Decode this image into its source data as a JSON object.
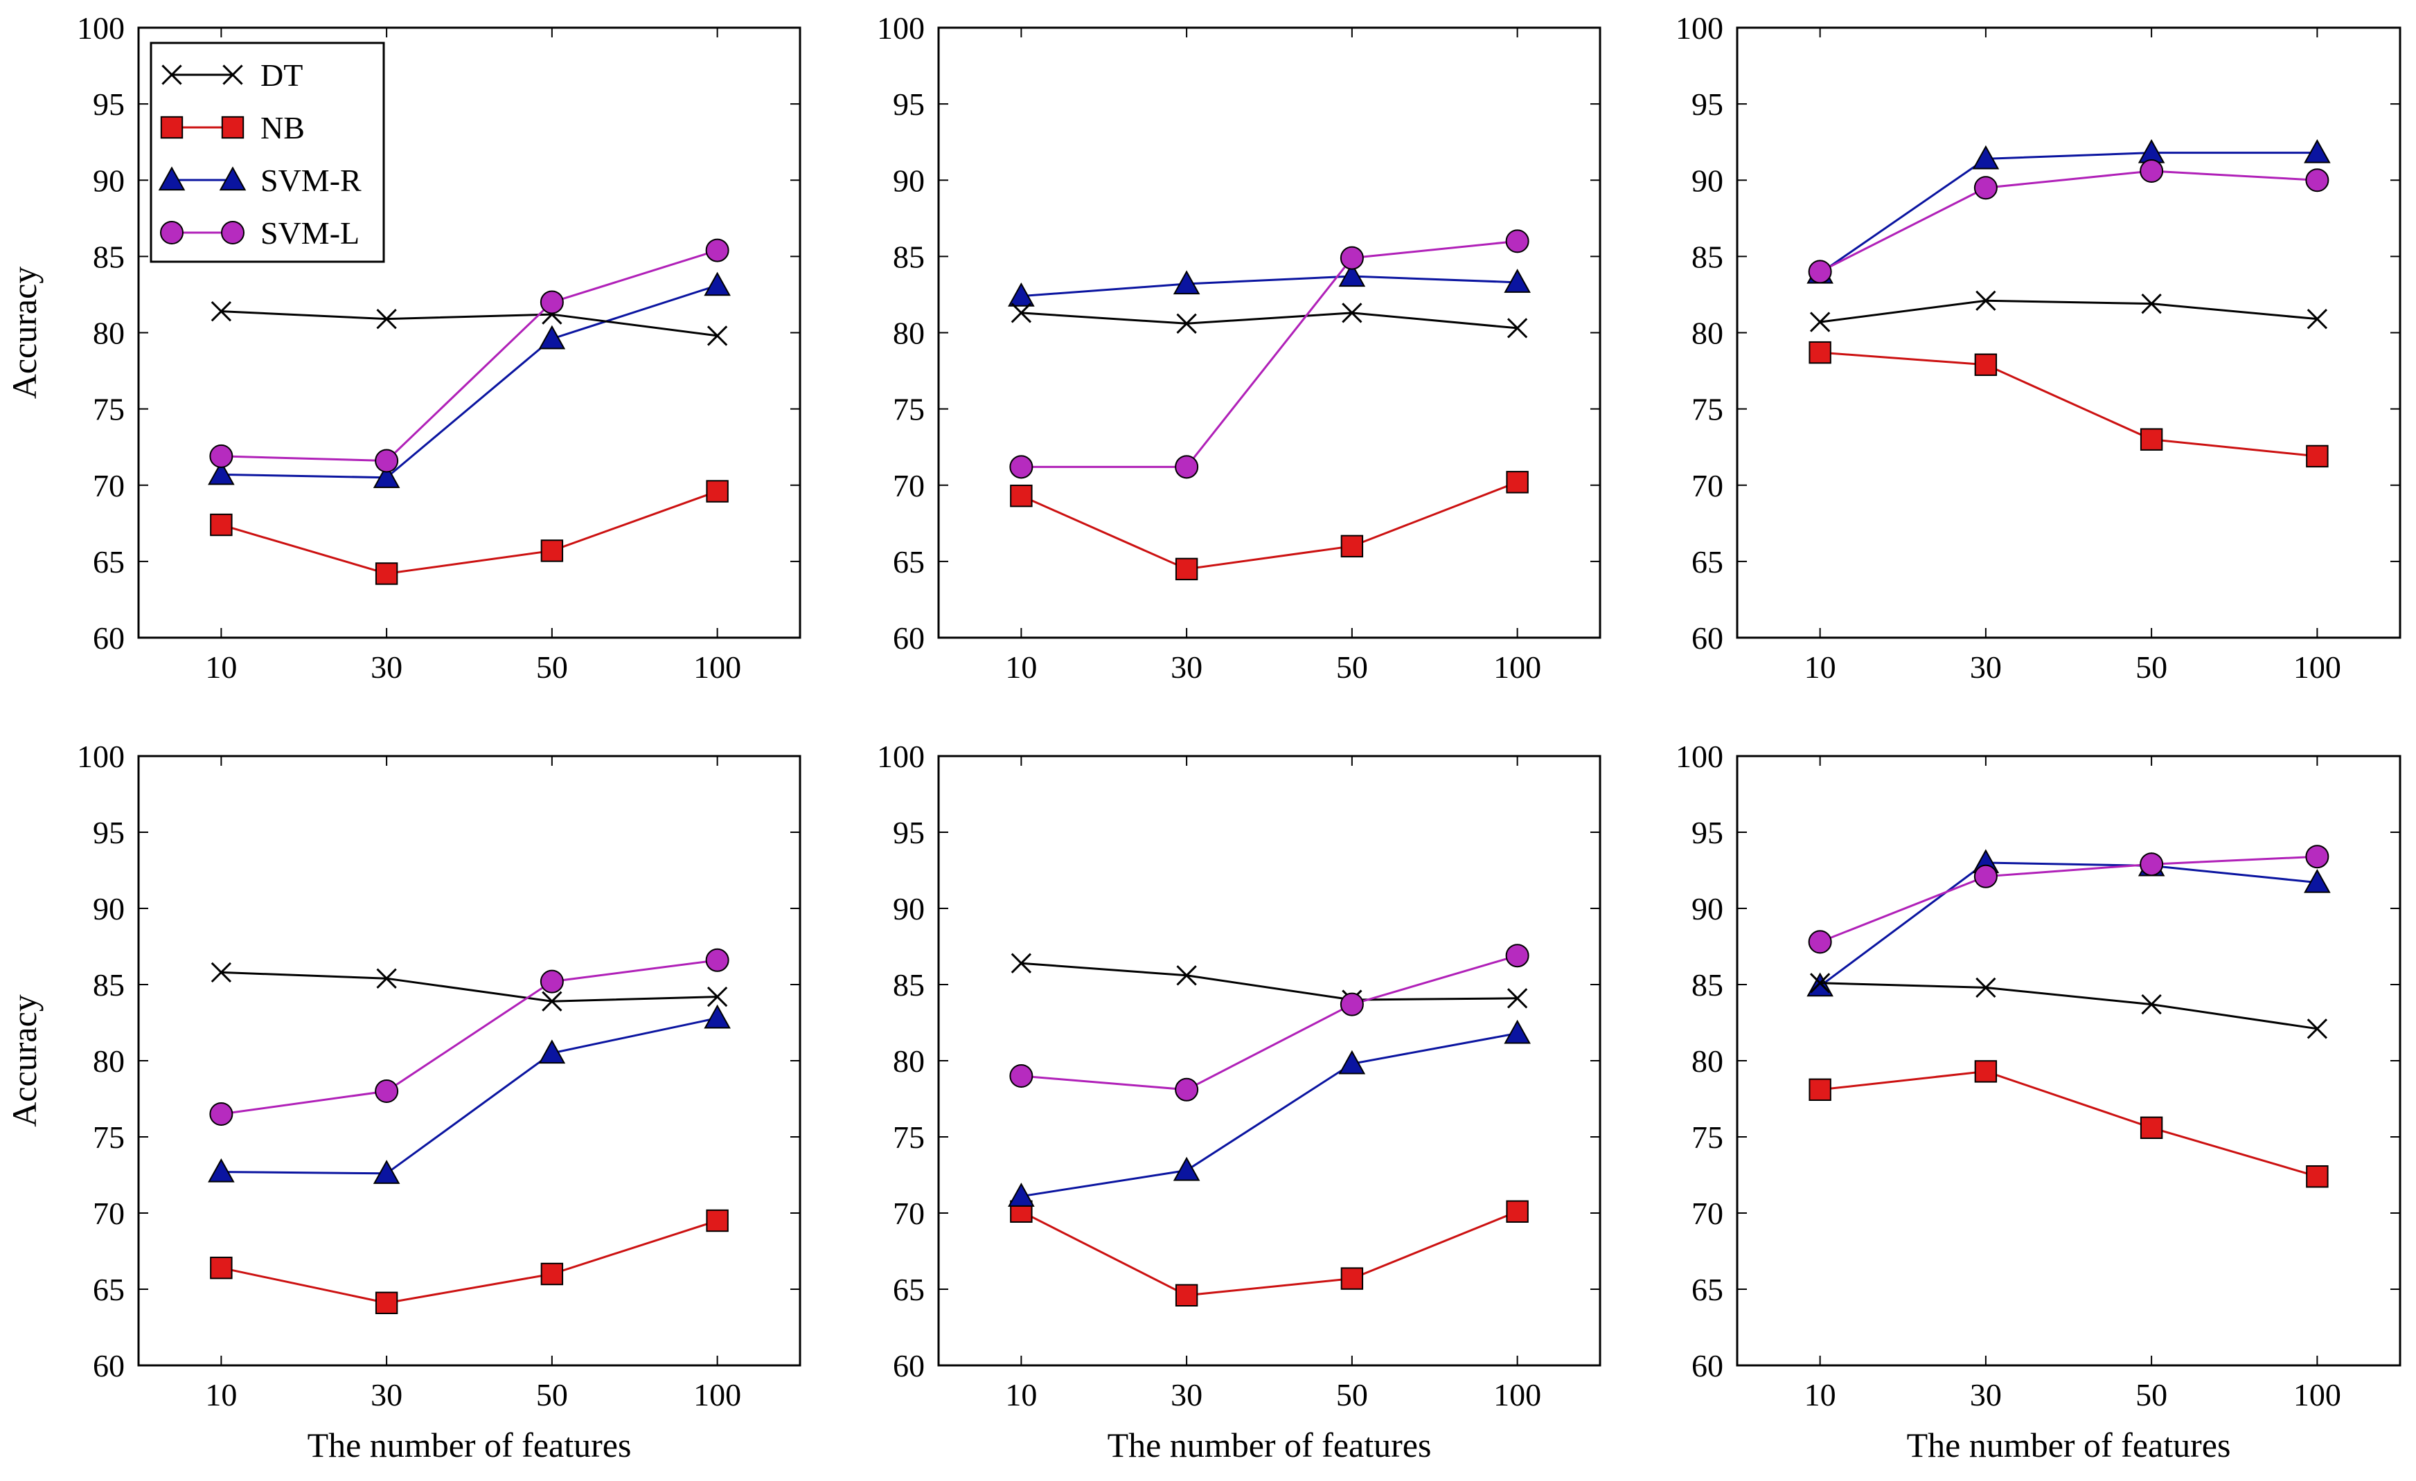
{
  "chart_data": [
    {
      "type": "line",
      "ylabel": "Accuracy",
      "xlabel": "",
      "categories": [
        "10",
        "30",
        "50",
        "100"
      ],
      "ylim": [
        60,
        100
      ],
      "yticks": [
        "60",
        "65",
        "70",
        "75",
        "80",
        "85",
        "90",
        "95",
        "100"
      ],
      "series": [
        {
          "name": "DT",
          "values": [
            81.4,
            80.9,
            81.2,
            79.8
          ]
        },
        {
          "name": "NB",
          "values": [
            67.4,
            64.2,
            65.7,
            69.6
          ]
        },
        {
          "name": "SVM-R",
          "values": [
            70.7,
            70.5,
            79.6,
            83.1
          ]
        },
        {
          "name": "SVM-L",
          "values": [
            71.9,
            71.6,
            82.0,
            85.4
          ]
        }
      ]
    },
    {
      "type": "line",
      "ylabel": "",
      "xlabel": "",
      "categories": [
        "10",
        "30",
        "50",
        "100"
      ],
      "ylim": [
        60,
        100
      ],
      "yticks": [
        "60",
        "65",
        "70",
        "75",
        "80",
        "85",
        "90",
        "95",
        "100"
      ],
      "series": [
        {
          "name": "DT",
          "values": [
            81.3,
            80.6,
            81.3,
            80.3
          ]
        },
        {
          "name": "NB",
          "values": [
            69.3,
            64.5,
            66.0,
            70.2
          ]
        },
        {
          "name": "SVM-R",
          "values": [
            82.4,
            83.2,
            83.7,
            83.3
          ]
        },
        {
          "name": "SVM-L",
          "values": [
            71.2,
            71.2,
            84.9,
            86.0
          ]
        }
      ]
    },
    {
      "type": "line",
      "ylabel": "",
      "xlabel": "",
      "categories": [
        "10",
        "30",
        "50",
        "100"
      ],
      "ylim": [
        60,
        100
      ],
      "yticks": [
        "60",
        "65",
        "70",
        "75",
        "80",
        "85",
        "90",
        "95",
        "100"
      ],
      "series": [
        {
          "name": "DT",
          "values": [
            80.7,
            82.1,
            81.9,
            80.9
          ]
        },
        {
          "name": "NB",
          "values": [
            78.7,
            77.9,
            73.0,
            71.9
          ]
        },
        {
          "name": "SVM-R",
          "values": [
            83.9,
            91.4,
            91.8,
            91.8
          ]
        },
        {
          "name": "SVM-L",
          "values": [
            84.0,
            89.5,
            90.6,
            90.0
          ]
        }
      ]
    },
    {
      "type": "line",
      "ylabel": "Accuracy",
      "xlabel": "The number of features",
      "categories": [
        "10",
        "30",
        "50",
        "100"
      ],
      "ylim": [
        60,
        100
      ],
      "yticks": [
        "60",
        "65",
        "70",
        "75",
        "80",
        "85",
        "90",
        "95",
        "100"
      ],
      "series": [
        {
          "name": "DT",
          "values": [
            85.8,
            85.4,
            83.9,
            84.2
          ]
        },
        {
          "name": "NB",
          "values": [
            66.4,
            64.1,
            66.0,
            69.5
          ]
        },
        {
          "name": "SVM-R",
          "values": [
            72.7,
            72.6,
            80.5,
            82.8
          ]
        },
        {
          "name": "SVM-L",
          "values": [
            76.5,
            78.0,
            85.2,
            86.6
          ]
        }
      ]
    },
    {
      "type": "line",
      "ylabel": "",
      "xlabel": "The number of features",
      "categories": [
        "10",
        "30",
        "50",
        "100"
      ],
      "ylim": [
        60,
        100
      ],
      "yticks": [
        "60",
        "65",
        "70",
        "75",
        "80",
        "85",
        "90",
        "95",
        "100"
      ],
      "series": [
        {
          "name": "DT",
          "values": [
            86.4,
            85.6,
            84.0,
            84.1
          ]
        },
        {
          "name": "NB",
          "values": [
            70.1,
            64.6,
            65.7,
            70.1
          ]
        },
        {
          "name": "SVM-R",
          "values": [
            71.1,
            72.8,
            79.8,
            81.8
          ]
        },
        {
          "name": "SVM-L",
          "values": [
            79.0,
            78.1,
            83.7,
            86.9
          ]
        }
      ]
    },
    {
      "type": "line",
      "ylabel": "",
      "xlabel": "The number of features",
      "categories": [
        "10",
        "30",
        "50",
        "100"
      ],
      "ylim": [
        60,
        100
      ],
      "yticks": [
        "60",
        "65",
        "70",
        "75",
        "80",
        "85",
        "90",
        "95",
        "100"
      ],
      "series": [
        {
          "name": "DT",
          "values": [
            85.1,
            84.8,
            83.7,
            82.1
          ]
        },
        {
          "name": "NB",
          "values": [
            78.1,
            79.3,
            75.6,
            72.4
          ]
        },
        {
          "name": "SVM-R",
          "values": [
            84.9,
            93.0,
            92.8,
            91.7
          ]
        },
        {
          "name": "SVM-L",
          "values": [
            87.8,
            92.1,
            92.9,
            93.4
          ]
        }
      ]
    }
  ],
  "legend": {
    "placement": "top-left of first panel",
    "entries": [
      {
        "name": "DT",
        "color": "#000000",
        "marker": "x"
      },
      {
        "name": "NB",
        "color": "#cc1111",
        "marker": "square"
      },
      {
        "name": "SVM-R",
        "color": "#0a14a0",
        "marker": "triangle"
      },
      {
        "name": "SVM-L",
        "color": "#b020b8",
        "marker": "circle"
      }
    ]
  },
  "colors": {
    "DT": "#000000",
    "NB": "#cc1111",
    "SVM-R": "#0a14a0",
    "SVM-L": "#b020b8",
    "NB_fill": "#e01a1a",
    "SVMR_fill": "#0a14a0",
    "SVML_fill": "#b62bbf"
  }
}
